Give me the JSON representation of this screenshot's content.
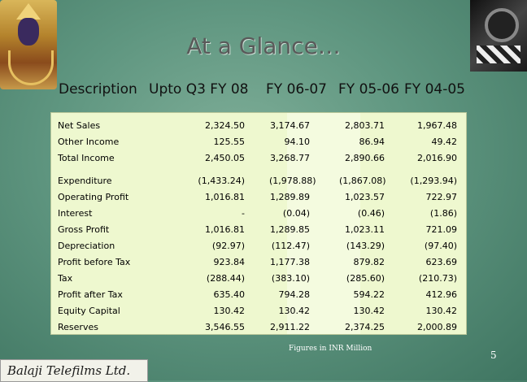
{
  "title": "At a Glance…",
  "headers": {
    "description": "Description",
    "col1": "Upto Q3 FY 08",
    "col2": "FY 06-07",
    "col3": "FY 05-06",
    "col4": "FY 04-05"
  },
  "rows": [
    {
      "label": "Net Sales",
      "v1": "2,324.50",
      "v2": "3,174.67",
      "v3": "2,803.71",
      "v4": "1,967.48"
    },
    {
      "label": "Other Income",
      "v1": "125.55",
      "v2": "94.10",
      "v3": "86.94",
      "v4": "49.42"
    },
    {
      "label": "Total Income",
      "v1": "2,450.05",
      "v2": "3,268.77",
      "v3": "2,890.66",
      "v4": "2,016.90"
    },
    {
      "label": "Expenditure",
      "v1": "(1,433.24)",
      "v2": "(1,978.88)",
      "v3": "(1,867.08)",
      "v4": "(1,293.94)"
    },
    {
      "label": "Operating Profit",
      "v1": "1,016.81",
      "v2": "1,289.89",
      "v3": "1,023.57",
      "v4": "722.97"
    },
    {
      "label": "Interest",
      "v1": "-",
      "v2": "(0.04)",
      "v3": "(0.46)",
      "v4": "(1.86)"
    },
    {
      "label": "Gross Profit",
      "v1": "1,016.81",
      "v2": "1,289.85",
      "v3": "1,023.11",
      "v4": "721.09"
    },
    {
      "label": "Depreciation",
      "v1": "(92.97)",
      "v2": "(112.47)",
      "v3": "(143.29)",
      "v4": "(97.40)"
    },
    {
      "label": "Profit before Tax",
      "v1": "923.84",
      "v2": "1,177.38",
      "v3": "879.82",
      "v4": "623.69"
    },
    {
      "label": "Tax",
      "v1": "(288.44)",
      "v2": "(383.10)",
      "v3": "(285.60)",
      "v4": "(210.73)"
    },
    {
      "label": "Profit after Tax",
      "v1": "635.40",
      "v2": "794.28",
      "v3": "594.22",
      "v4": "412.96"
    },
    {
      "label": "Equity Capital",
      "v1": "130.42",
      "v2": "130.42",
      "v3": "130.42",
      "v4": "130.42"
    },
    {
      "label": "Reserves",
      "v1": "3,546.55",
      "v2": "2,911.22",
      "v3": "2,374.25",
      "v4": "2,000.89"
    }
  ],
  "note": "Figures in INR Million",
  "page_number": "5",
  "logo_text": "Balaji Telefilms Ltd."
}
